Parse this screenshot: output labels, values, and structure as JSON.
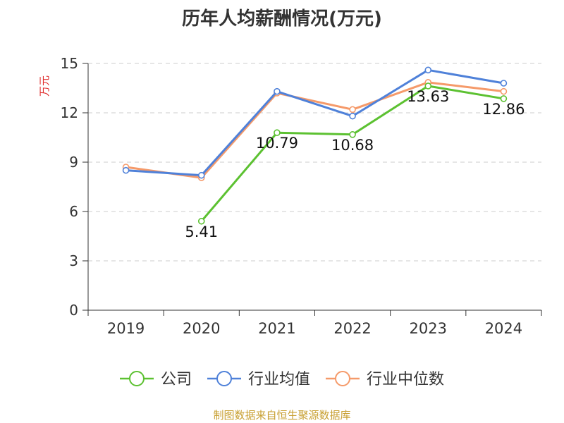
{
  "title": "历年人均薪酬情况(万元)",
  "source": "制图数据来自恒生聚源数据库",
  "chart_data": {
    "type": "line",
    "title": "历年人均薪酬情况(万元)",
    "ylabel": "万元",
    "xlabel": "",
    "categories": [
      "2019",
      "2020",
      "2021",
      "2022",
      "2023",
      "2024"
    ],
    "ylim": [
      0,
      15
    ],
    "yticks": [
      0,
      3,
      6,
      9,
      12,
      15
    ],
    "grid": "horizontal-dashed",
    "legend_position": "bottom",
    "series": [
      {
        "name": "公司",
        "color": "#5cc131",
        "values": [
          null,
          5.41,
          10.79,
          10.68,
          13.63,
          12.86
        ],
        "labels": [
          "",
          "5.41",
          "10.79",
          "10.68",
          "13.63",
          "12.86"
        ]
      },
      {
        "name": "行业均值",
        "color": "#4f81d9",
        "values": [
          8.5,
          8.2,
          13.3,
          11.8,
          14.6,
          13.8
        ]
      },
      {
        "name": "行业中位数",
        "color": "#f59a6a",
        "values": [
          8.7,
          8.05,
          13.2,
          12.2,
          13.85,
          13.3
        ]
      }
    ]
  },
  "colors": {
    "title": "#333333",
    "ylabel": "#e03030",
    "source": "#c8a032",
    "grid": "#cccccc",
    "axis": "#333333"
  }
}
